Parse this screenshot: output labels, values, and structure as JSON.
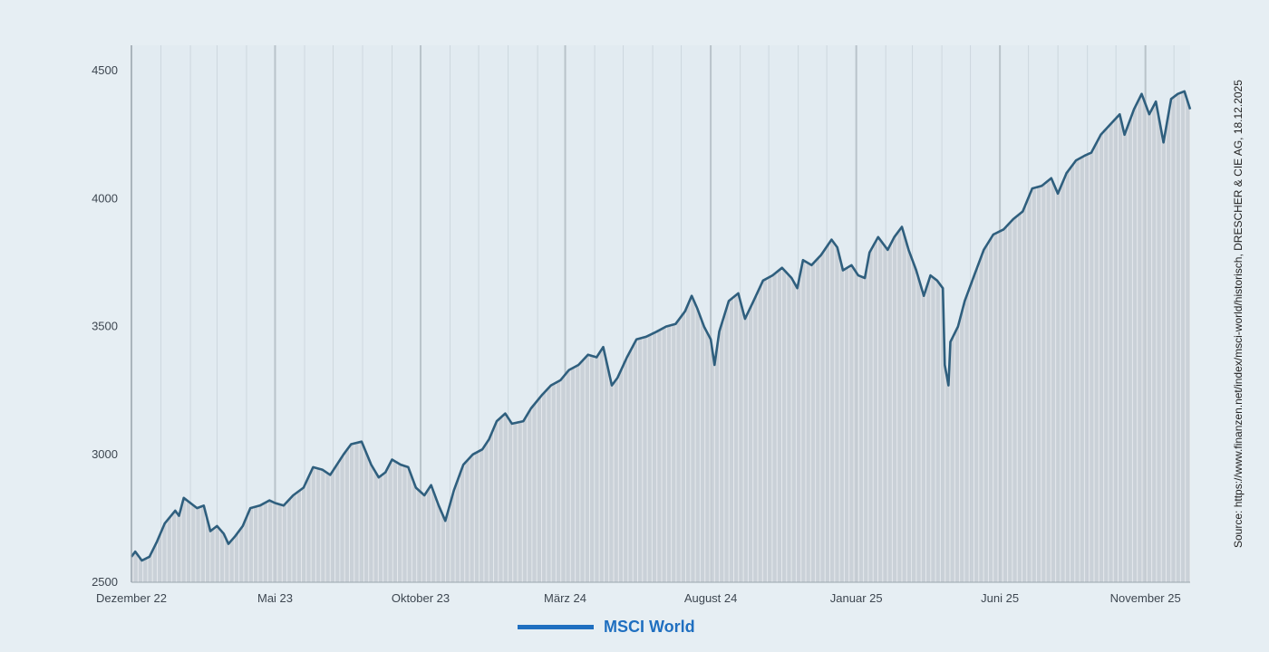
{
  "chart_data": {
    "type": "area",
    "title": "",
    "xlabel": "",
    "ylabel": "",
    "source": "Source: https://www.finanzen.net/index/msci-world/historisch, DRESCHER & CIE AG, 18.12.2025",
    "legend": "bottom-center",
    "grid": true,
    "ylim": [
      2500,
      4600
    ],
    "yticks": [
      2500,
      3000,
      3500,
      4000,
      4500
    ],
    "x_range": [
      "2022-12-01",
      "2025-12-18"
    ],
    "xticks": [
      {
        "date": "2022-12-01",
        "label": "Dezember 22"
      },
      {
        "date": "2023-05-01",
        "label": "Mai 23"
      },
      {
        "date": "2023-10-01",
        "label": "Oktober 23"
      },
      {
        "date": "2024-03-01",
        "label": "März 24"
      },
      {
        "date": "2024-08-01",
        "label": "August 24"
      },
      {
        "date": "2025-01-01",
        "label": "Januar 25"
      },
      {
        "date": "2025-06-01",
        "label": "Juni 25"
      },
      {
        "date": "2025-11-01",
        "label": "November 25"
      }
    ],
    "series": [
      {
        "name": "MSCI World",
        "color": "#1f6fc0",
        "line_color": "#2f5f7e",
        "fill_color": "#c6cdd3",
        "points": [
          [
            "2022-12-01",
            2600
          ],
          [
            "2022-12-05",
            2620
          ],
          [
            "2022-12-12",
            2585
          ],
          [
            "2022-12-20",
            2600
          ],
          [
            "2022-12-28",
            2660
          ],
          [
            "2023-01-05",
            2730
          ],
          [
            "2023-01-16",
            2780
          ],
          [
            "2023-01-20",
            2760
          ],
          [
            "2023-01-25",
            2830
          ],
          [
            "2023-02-01",
            2810
          ],
          [
            "2023-02-08",
            2790
          ],
          [
            "2023-02-15",
            2800
          ],
          [
            "2023-02-22",
            2700
          ],
          [
            "2023-03-01",
            2720
          ],
          [
            "2023-03-08",
            2690
          ],
          [
            "2023-03-13",
            2650
          ],
          [
            "2023-03-20",
            2680
          ],
          [
            "2023-03-28",
            2720
          ],
          [
            "2023-04-05",
            2790
          ],
          [
            "2023-04-15",
            2800
          ],
          [
            "2023-04-25",
            2820
          ],
          [
            "2023-05-01",
            2810
          ],
          [
            "2023-05-10",
            2800
          ],
          [
            "2023-05-20",
            2840
          ],
          [
            "2023-05-31",
            2870
          ],
          [
            "2023-06-10",
            2950
          ],
          [
            "2023-06-20",
            2940
          ],
          [
            "2023-06-28",
            2920
          ],
          [
            "2023-07-05",
            2960
          ],
          [
            "2023-07-12",
            3000
          ],
          [
            "2023-07-20",
            3040
          ],
          [
            "2023-07-31",
            3050
          ],
          [
            "2023-08-10",
            2960
          ],
          [
            "2023-08-18",
            2910
          ],
          [
            "2023-08-25",
            2930
          ],
          [
            "2023-09-01",
            2980
          ],
          [
            "2023-09-10",
            2960
          ],
          [
            "2023-09-18",
            2950
          ],
          [
            "2023-09-26",
            2870
          ],
          [
            "2023-10-05",
            2840
          ],
          [
            "2023-10-12",
            2880
          ],
          [
            "2023-10-20",
            2800
          ],
          [
            "2023-10-27",
            2740
          ],
          [
            "2023-11-05",
            2860
          ],
          [
            "2023-11-15",
            2960
          ],
          [
            "2023-11-25",
            3000
          ],
          [
            "2023-12-05",
            3020
          ],
          [
            "2023-12-12",
            3060
          ],
          [
            "2023-12-20",
            3130
          ],
          [
            "2023-12-29",
            3160
          ],
          [
            "2024-01-05",
            3120
          ],
          [
            "2024-01-17",
            3130
          ],
          [
            "2024-01-25",
            3180
          ],
          [
            "2024-02-05",
            3230
          ],
          [
            "2024-02-15",
            3270
          ],
          [
            "2024-02-25",
            3290
          ],
          [
            "2024-03-05",
            3330
          ],
          [
            "2024-03-15",
            3350
          ],
          [
            "2024-03-25",
            3390
          ],
          [
            "2024-04-03",
            3380
          ],
          [
            "2024-04-10",
            3420
          ],
          [
            "2024-04-19",
            3270
          ],
          [
            "2024-04-25",
            3300
          ],
          [
            "2024-05-05",
            3380
          ],
          [
            "2024-05-15",
            3450
          ],
          [
            "2024-05-25",
            3460
          ],
          [
            "2024-06-05",
            3480
          ],
          [
            "2024-06-15",
            3500
          ],
          [
            "2024-06-25",
            3510
          ],
          [
            "2024-07-05",
            3560
          ],
          [
            "2024-07-12",
            3620
          ],
          [
            "2024-07-18",
            3570
          ],
          [
            "2024-07-25",
            3500
          ],
          [
            "2024-08-01",
            3450
          ],
          [
            "2024-08-05",
            3350
          ],
          [
            "2024-08-10",
            3480
          ],
          [
            "2024-08-20",
            3600
          ],
          [
            "2024-08-30",
            3630
          ],
          [
            "2024-09-06",
            3530
          ],
          [
            "2024-09-15",
            3600
          ],
          [
            "2024-09-25",
            3680
          ],
          [
            "2024-10-05",
            3700
          ],
          [
            "2024-10-15",
            3730
          ],
          [
            "2024-10-25",
            3690
          ],
          [
            "2024-10-31",
            3650
          ],
          [
            "2024-11-06",
            3760
          ],
          [
            "2024-11-15",
            3740
          ],
          [
            "2024-11-25",
            3780
          ],
          [
            "2024-12-06",
            3840
          ],
          [
            "2024-12-12",
            3810
          ],
          [
            "2024-12-18",
            3720
          ],
          [
            "2024-12-27",
            3740
          ],
          [
            "2025-01-03",
            3700
          ],
          [
            "2025-01-10",
            3690
          ],
          [
            "2025-01-15",
            3790
          ],
          [
            "2025-01-24",
            3850
          ],
          [
            "2025-02-03",
            3800
          ],
          [
            "2025-02-10",
            3850
          ],
          [
            "2025-02-18",
            3890
          ],
          [
            "2025-02-25",
            3800
          ],
          [
            "2025-03-05",
            3720
          ],
          [
            "2025-03-13",
            3620
          ],
          [
            "2025-03-20",
            3700
          ],
          [
            "2025-03-27",
            3680
          ],
          [
            "2025-04-02",
            3650
          ],
          [
            "2025-04-04",
            3350
          ],
          [
            "2025-04-08",
            3270
          ],
          [
            "2025-04-10",
            3440
          ],
          [
            "2025-04-18",
            3500
          ],
          [
            "2025-04-25",
            3600
          ],
          [
            "2025-05-05",
            3700
          ],
          [
            "2025-05-15",
            3800
          ],
          [
            "2025-05-25",
            3860
          ],
          [
            "2025-06-05",
            3880
          ],
          [
            "2025-06-15",
            3920
          ],
          [
            "2025-06-25",
            3950
          ],
          [
            "2025-07-05",
            4040
          ],
          [
            "2025-07-15",
            4050
          ],
          [
            "2025-07-25",
            4080
          ],
          [
            "2025-08-01",
            4020
          ],
          [
            "2025-08-10",
            4100
          ],
          [
            "2025-08-20",
            4150
          ],
          [
            "2025-08-30",
            4170
          ],
          [
            "2025-09-05",
            4180
          ],
          [
            "2025-09-15",
            4250
          ],
          [
            "2025-09-25",
            4290
          ],
          [
            "2025-10-05",
            4330
          ],
          [
            "2025-10-10",
            4250
          ],
          [
            "2025-10-20",
            4350
          ],
          [
            "2025-10-28",
            4410
          ],
          [
            "2025-11-05",
            4330
          ],
          [
            "2025-11-12",
            4380
          ],
          [
            "2025-11-20",
            4220
          ],
          [
            "2025-11-28",
            4390
          ],
          [
            "2025-12-05",
            4410
          ],
          [
            "2025-12-12",
            4420
          ],
          [
            "2025-12-18",
            4350
          ]
        ]
      }
    ]
  }
}
